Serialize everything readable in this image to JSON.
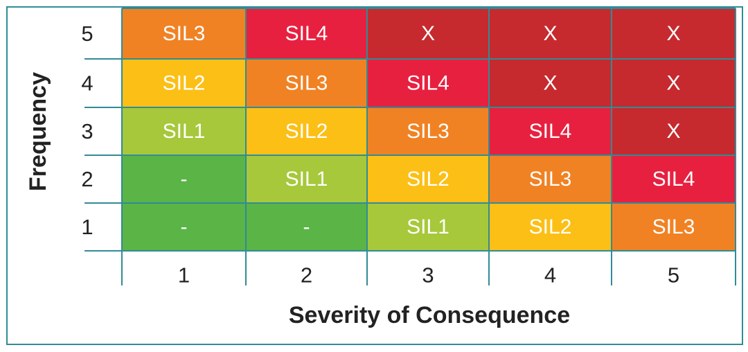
{
  "y_axis": {
    "title": "Frequency",
    "labels": [
      "5",
      "4",
      "3",
      "2",
      "1"
    ]
  },
  "x_axis": {
    "title": "Severity of Consequence",
    "labels": [
      "1",
      "2",
      "3",
      "4",
      "5"
    ]
  },
  "matrix": {
    "rows": [
      [
        "SIL3",
        "SIL4",
        "X",
        "X",
        "X"
      ],
      [
        "SIL2",
        "SIL3",
        "SIL4",
        "X",
        "X"
      ],
      [
        "SIL1",
        "SIL2",
        "SIL3",
        "SIL4",
        "X"
      ],
      [
        "-",
        "SIL1",
        "SIL2",
        "SIL3",
        "SIL4"
      ],
      [
        "-",
        "-",
        "SIL1",
        "SIL2",
        "SIL3"
      ]
    ],
    "colors": [
      [
        "#f08224",
        "#e8203f",
        "#c62a2e",
        "#c62a2e",
        "#c62a2e"
      ],
      [
        "#fbbf16",
        "#f08224",
        "#e8203f",
        "#c62a2e",
        "#c62a2e"
      ],
      [
        "#a7c83a",
        "#fbbf16",
        "#f08224",
        "#e8203f",
        "#c62a2e"
      ],
      [
        "#5bb446",
        "#a7c83a",
        "#fbbf16",
        "#f08224",
        "#e8203f"
      ],
      [
        "#5bb446",
        "#5bb446",
        "#a7c83a",
        "#fbbf16",
        "#f08224"
      ]
    ]
  }
}
